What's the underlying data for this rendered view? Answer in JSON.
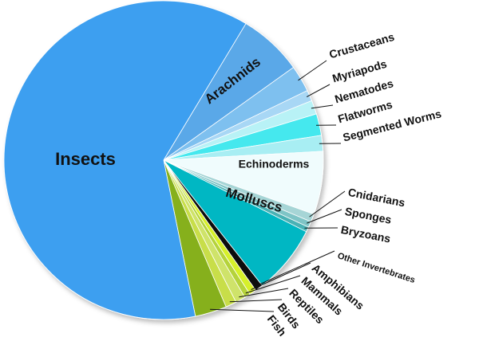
{
  "chart_data": {
    "type": "pie",
    "title": "",
    "start_angle_deg": -59,
    "direction": "clockwise",
    "slices": [
      {
        "label": "Arachnids",
        "value": 6.5,
        "color": "#5aa8e8",
        "label_style": "inside"
      },
      {
        "label": "Crustaceans",
        "value": 2.7,
        "color": "#7ec0ef",
        "label_style": "leader"
      },
      {
        "label": "Myriapods",
        "value": 1.1,
        "color": "#a8d7f5",
        "label_style": "leader"
      },
      {
        "label": "Nematodes",
        "value": 1.4,
        "color": "#b8f2f6",
        "label_style": "leader"
      },
      {
        "label": "Flatworms",
        "value": 2.2,
        "color": "#45e8ee",
        "label_style": "leader"
      },
      {
        "label": "Segmented Worms",
        "value": 1.6,
        "color": "#a8eef3",
        "label_style": "leader"
      },
      {
        "label": "Echinoderms",
        "value": 6.4,
        "color": "#f0fcfd",
        "label_style": "inside"
      },
      {
        "label": "Cnidarians",
        "value": 0.8,
        "color": "#a6d5d6",
        "label_style": "leader"
      },
      {
        "label": "Sponges",
        "value": 0.6,
        "color": "#7ec4c6",
        "label_style": "leader"
      },
      {
        "label": "Bryzoans",
        "value": 0.5,
        "color": "#4ab2b5",
        "label_style": "leader"
      },
      {
        "label": "Molluscs",
        "value": 7.0,
        "color": "#00b7c3",
        "label_style": "inside"
      },
      {
        "label": "Other Invertebrates",
        "value": 0.8,
        "color": "#111111",
        "label_style": "leader"
      },
      {
        "label": "Amphibians",
        "value": 0.7,
        "color": "#d6f02a",
        "label_style": "leader"
      },
      {
        "label": "Mammals",
        "value": 0.6,
        "color": "#b5d33a",
        "label_style": "leader"
      },
      {
        "label": "Reptiles",
        "value": 1.0,
        "color": "#cfe36b",
        "label_style": "leader"
      },
      {
        "label": "Birds",
        "value": 1.1,
        "color": "#c8de4a",
        "label_style": "leader"
      },
      {
        "label": "Fish",
        "value": 3.2,
        "color": "#86b01a",
        "label_style": "leader"
      },
      {
        "label": "Insects",
        "value": 61.8,
        "color": "#3d9ff0",
        "label_style": "inside"
      }
    ]
  }
}
